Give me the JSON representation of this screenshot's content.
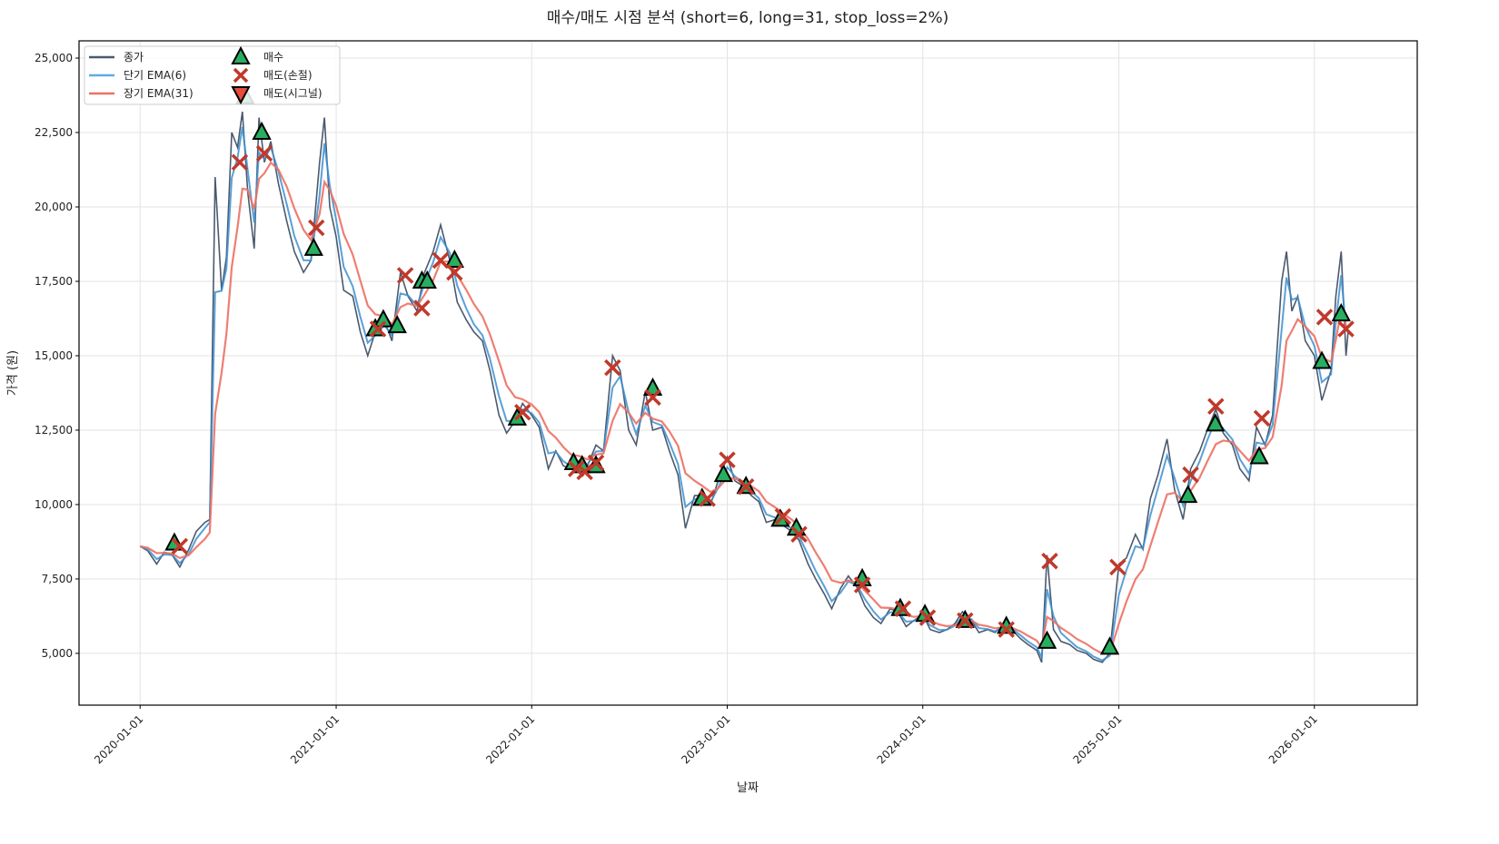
{
  "chart_data": {
    "type": "line",
    "title": "매수/매도 시점 분석 (short=6, long=31, stop_loss=2%)",
    "xlabel": "날짜",
    "ylabel": "가격 (원)",
    "xlim": [
      "2019-09-09",
      "2026-07-12"
    ],
    "ylim": [
      3260,
      25580
    ],
    "grid": true,
    "legend_placement": "top-left",
    "x_ticks": [
      "2020-01-01",
      "2021-01-01",
      "2022-01-01",
      "2023-01-01",
      "2024-01-01",
      "2025-01-01",
      "2026-01-01"
    ],
    "y_ticks": [
      5000,
      7500,
      10000,
      12500,
      15000,
      17500,
      20000,
      22500,
      25000
    ],
    "y_tick_labels": [
      "5,000",
      "7,500",
      "10,000",
      "12,500",
      "15,000",
      "17,500",
      "20,000",
      "22,500",
      "25,000"
    ],
    "ema_short_span": 6,
    "ema_long_span": 31,
    "legend": [
      {
        "label": "종가",
        "kind": "line",
        "color": "#4a5a6e"
      },
      {
        "label": "단기 EMA(6)",
        "kind": "line",
        "color": "#5dade2"
      },
      {
        "label": "장기 EMA(31)",
        "kind": "line",
        "color": "#ec7063"
      },
      {
        "label": "매수",
        "kind": "marker-triangle-up",
        "color": "#27ae60"
      },
      {
        "label": "매도(손절)",
        "kind": "marker-x",
        "color": "#c0392b"
      },
      {
        "label": "매도(시그널)",
        "kind": "marker-triangle-down",
        "color": "#e74c3c"
      }
    ],
    "close": [
      [
        "2020-01-01",
        8600
      ],
      [
        "2020-01-15",
        8450
      ],
      [
        "2020-02-01",
        8000
      ],
      [
        "2020-02-15",
        8400
      ],
      [
        "2020-03-01",
        8300
      ],
      [
        "2020-03-15",
        7900
      ],
      [
        "2020-04-01",
        8500
      ],
      [
        "2020-04-15",
        9100
      ],
      [
        "2020-05-01",
        9400
      ],
      [
        "2020-05-10",
        9500
      ],
      [
        "2020-05-20",
        21000
      ],
      [
        "2020-06-01",
        17200
      ],
      [
        "2020-06-10",
        18300
      ],
      [
        "2020-06-20",
        22500
      ],
      [
        "2020-07-01",
        22000
      ],
      [
        "2020-07-10",
        23200
      ],
      [
        "2020-07-20",
        20500
      ],
      [
        "2020-08-01",
        18600
      ],
      [
        "2020-08-10",
        23000
      ],
      [
        "2020-08-20",
        21500
      ],
      [
        "2020-09-01",
        22200
      ],
      [
        "2020-09-15",
        20800
      ],
      [
        "2020-10-01",
        19500
      ],
      [
        "2020-10-15",
        18500
      ],
      [
        "2020-11-01",
        17800
      ],
      [
        "2020-11-15",
        18200
      ],
      [
        "2020-12-01",
        21500
      ],
      [
        "2020-12-10",
        23000
      ],
      [
        "2020-12-20",
        20000
      ],
      [
        "2021-01-01",
        19000
      ],
      [
        "2021-01-15",
        17200
      ],
      [
        "2021-02-01",
        17000
      ],
      [
        "2021-02-15",
        15800
      ],
      [
        "2021-03-01",
        15000
      ],
      [
        "2021-03-15",
        15800
      ],
      [
        "2021-04-01",
        16200
      ],
      [
        "2021-04-15",
        15500
      ],
      [
        "2021-05-01",
        17800
      ],
      [
        "2021-05-15",
        17000
      ],
      [
        "2021-06-01",
        16500
      ],
      [
        "2021-06-15",
        17800
      ],
      [
        "2021-07-01",
        18500
      ],
      [
        "2021-07-15",
        19400
      ],
      [
        "2021-08-01",
        18200
      ],
      [
        "2021-08-15",
        16800
      ],
      [
        "2021-09-01",
        16200
      ],
      [
        "2021-09-15",
        15800
      ],
      [
        "2021-10-01",
        15500
      ],
      [
        "2021-10-15",
        14500
      ],
      [
        "2021-11-01",
        13000
      ],
      [
        "2021-11-15",
        12400
      ],
      [
        "2021-12-01",
        12800
      ],
      [
        "2021-12-15",
        13400
      ],
      [
        "2022-01-01",
        13000
      ],
      [
        "2022-01-15",
        12600
      ],
      [
        "2022-02-01",
        11200
      ],
      [
        "2022-02-15",
        11800
      ],
      [
        "2022-03-01",
        11300
      ],
      [
        "2022-03-15",
        11200
      ],
      [
        "2022-04-01",
        11500
      ],
      [
        "2022-04-15",
        11300
      ],
      [
        "2022-05-01",
        12000
      ],
      [
        "2022-05-15",
        11800
      ],
      [
        "2022-06-01",
        15000
      ],
      [
        "2022-06-15",
        14500
      ],
      [
        "2022-07-01",
        12500
      ],
      [
        "2022-07-15",
        12000
      ],
      [
        "2022-08-01",
        13800
      ],
      [
        "2022-08-15",
        12500
      ],
      [
        "2022-09-01",
        12600
      ],
      [
        "2022-09-15",
        11800
      ],
      [
        "2022-10-01",
        11000
      ],
      [
        "2022-10-15",
        9200
      ],
      [
        "2022-11-01",
        10300
      ],
      [
        "2022-11-15",
        10300
      ],
      [
        "2022-12-01",
        10000
      ],
      [
        "2022-12-15",
        10800
      ],
      [
        "2023-01-01",
        11600
      ],
      [
        "2023-01-15",
        10800
      ],
      [
        "2023-02-01",
        10600
      ],
      [
        "2023-02-15",
        10300
      ],
      [
        "2023-03-01",
        10100
      ],
      [
        "2023-03-15",
        9400
      ],
      [
        "2023-04-01",
        9500
      ],
      [
        "2023-04-15",
        9300
      ],
      [
        "2023-05-01",
        9100
      ],
      [
        "2023-05-15",
        8800
      ],
      [
        "2023-06-01",
        8000
      ],
      [
        "2023-06-15",
        7500
      ],
      [
        "2023-07-01",
        7000
      ],
      [
        "2023-07-15",
        6500
      ],
      [
        "2023-08-01",
        7200
      ],
      [
        "2023-08-15",
        7600
      ],
      [
        "2023-09-01",
        7200
      ],
      [
        "2023-09-15",
        6600
      ],
      [
        "2023-10-01",
        6200
      ],
      [
        "2023-10-15",
        6000
      ],
      [
        "2023-11-01",
        6500
      ],
      [
        "2023-11-15",
        6400
      ],
      [
        "2023-12-01",
        5900
      ],
      [
        "2023-12-15",
        6100
      ],
      [
        "2024-01-01",
        6300
      ],
      [
        "2024-01-15",
        5800
      ],
      [
        "2024-02-01",
        5700
      ],
      [
        "2024-02-15",
        5800
      ],
      [
        "2024-03-01",
        6000
      ],
      [
        "2024-03-15",
        6400
      ],
      [
        "2024-04-01",
        6100
      ],
      [
        "2024-04-15",
        5700
      ],
      [
        "2024-05-01",
        5800
      ],
      [
        "2024-05-15",
        5700
      ],
      [
        "2024-06-01",
        6000
      ],
      [
        "2024-06-15",
        5800
      ],
      [
        "2024-07-01",
        5500
      ],
      [
        "2024-07-15",
        5300
      ],
      [
        "2024-08-01",
        5100
      ],
      [
        "2024-08-10",
        4700
      ],
      [
        "2024-08-20",
        8300
      ],
      [
        "2024-09-01",
        5800
      ],
      [
        "2024-09-15",
        5400
      ],
      [
        "2024-10-01",
        5300
      ],
      [
        "2024-10-15",
        5100
      ],
      [
        "2024-11-01",
        5000
      ],
      [
        "2024-11-15",
        4800
      ],
      [
        "2024-12-01",
        4700
      ],
      [
        "2024-12-15",
        5000
      ],
      [
        "2025-01-01",
        8000
      ],
      [
        "2025-01-15",
        8200
      ],
      [
        "2025-02-01",
        9000
      ],
      [
        "2025-02-15",
        8500
      ],
      [
        "2025-03-01",
        10200
      ],
      [
        "2025-03-15",
        11000
      ],
      [
        "2025-04-01",
        12200
      ],
      [
        "2025-04-15",
        10500
      ],
      [
        "2025-05-01",
        9500
      ],
      [
        "2025-05-15",
        11200
      ],
      [
        "2025-06-01",
        11800
      ],
      [
        "2025-06-15",
        12500
      ],
      [
        "2025-07-01",
        13200
      ],
      [
        "2025-07-15",
        12400
      ],
      [
        "2025-08-01",
        12000
      ],
      [
        "2025-08-15",
        11200
      ],
      [
        "2025-09-01",
        10800
      ],
      [
        "2025-09-15",
        12600
      ],
      [
        "2025-10-01",
        12000
      ],
      [
        "2025-10-15",
        13000
      ],
      [
        "2025-11-01",
        17500
      ],
      [
        "2025-11-10",
        18500
      ],
      [
        "2025-11-20",
        16500
      ],
      [
        "2025-12-01",
        17000
      ],
      [
        "2025-12-15",
        15500
      ],
      [
        "2026-01-01",
        15000
      ],
      [
        "2026-01-15",
        13500
      ],
      [
        "2026-02-01",
        14500
      ],
      [
        "2026-02-10",
        17000
      ],
      [
        "2026-02-20",
        18500
      ],
      [
        "2026-03-01",
        15000
      ],
      [
        "2026-03-05",
        15800
      ]
    ],
    "buy_points": [
      [
        "2020-03-05",
        8700
      ],
      [
        "2020-07-15",
        23700
      ],
      [
        "2020-08-15",
        22500
      ],
      [
        "2020-11-20",
        18600
      ],
      [
        "2021-03-15",
        15900
      ],
      [
        "2021-03-30",
        16200
      ],
      [
        "2021-04-25",
        16000
      ],
      [
        "2021-06-10",
        17500
      ],
      [
        "2021-06-20",
        17500
      ],
      [
        "2021-08-10",
        18200
      ],
      [
        "2021-12-05",
        12900
      ],
      [
        "2022-03-20",
        11400
      ],
      [
        "2022-04-05",
        11300
      ],
      [
        "2022-05-01",
        11300
      ],
      [
        "2022-08-15",
        13900
      ],
      [
        "2022-11-15",
        10200
      ],
      [
        "2022-12-25",
        11000
      ],
      [
        "2023-02-05",
        10600
      ],
      [
        "2023-04-10",
        9500
      ],
      [
        "2023-05-10",
        9200
      ],
      [
        "2023-09-10",
        7500
      ],
      [
        "2023-11-20",
        6500
      ],
      [
        "2024-01-05",
        6300
      ],
      [
        "2024-03-20",
        6100
      ],
      [
        "2024-06-05",
        5900
      ],
      [
        "2024-08-20",
        5400
      ],
      [
        "2024-12-15",
        5200
      ],
      [
        "2025-05-10",
        10300
      ],
      [
        "2025-06-30",
        12700
      ],
      [
        "2025-09-20",
        11600
      ],
      [
        "2026-01-15",
        14800
      ],
      [
        "2026-02-20",
        16400
      ]
    ],
    "sell_stoploss_points": [
      [
        "2020-03-15",
        8600
      ],
      [
        "2020-07-05",
        21500
      ],
      [
        "2020-08-20",
        21800
      ],
      [
        "2020-11-25",
        19300
      ],
      [
        "2021-03-20",
        15900
      ],
      [
        "2021-05-10",
        17700
      ],
      [
        "2021-06-10",
        16600
      ],
      [
        "2021-07-15",
        18200
      ],
      [
        "2021-08-10",
        17800
      ],
      [
        "2021-12-15",
        13100
      ],
      [
        "2022-03-25",
        11200
      ],
      [
        "2022-04-10",
        11100
      ],
      [
        "2022-05-01",
        11400
      ],
      [
        "2022-06-01",
        14600
      ],
      [
        "2022-08-15",
        13600
      ],
      [
        "2022-11-25",
        10200
      ],
      [
        "2023-01-01",
        11500
      ],
      [
        "2023-02-05",
        10600
      ],
      [
        "2023-04-15",
        9600
      ],
      [
        "2023-05-15",
        9000
      ],
      [
        "2023-09-10",
        7300
      ],
      [
        "2023-11-25",
        6500
      ],
      [
        "2024-01-10",
        6200
      ],
      [
        "2024-03-20",
        6100
      ],
      [
        "2024-06-05",
        5800
      ],
      [
        "2024-08-25",
        8100
      ],
      [
        "2024-12-30",
        7900
      ],
      [
        "2025-05-15",
        11000
      ],
      [
        "2025-07-01",
        13300
      ],
      [
        "2025-09-25",
        12900
      ],
      [
        "2026-01-20",
        16300
      ],
      [
        "2026-03-01",
        15900
      ]
    ],
    "sell_signal_points": []
  }
}
